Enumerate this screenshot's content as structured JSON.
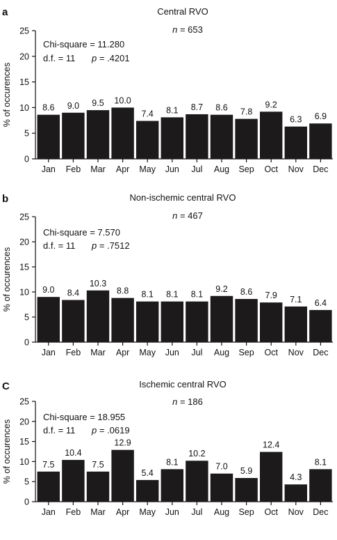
{
  "chart_data": [
    {
      "type": "bar",
      "panel": "a",
      "title": "Central RVO",
      "n_label": "n",
      "n_value": "= 653",
      "ylabel": "% of occurences",
      "xlabel": "",
      "ylim": [
        0,
        25
      ],
      "yticks": [
        "0",
        "5",
        "10",
        "15",
        "20",
        "25"
      ],
      "grid": false,
      "stats": {
        "chi_square": "Chi-square = 11.280",
        "df": "d.f. = 11",
        "p_label": "p",
        "p_value": "= .4201"
      },
      "categories": [
        "Jan",
        "Feb",
        "Mar",
        "Apr",
        "May",
        "Jun",
        "Jul",
        "Aug",
        "Sep",
        "Oct",
        "Nov",
        "Dec"
      ],
      "values": [
        8.6,
        9.0,
        9.5,
        10.0,
        7.4,
        8.1,
        8.7,
        8.6,
        7.8,
        9.2,
        6.3,
        6.9
      ],
      "value_labels": [
        "8.6",
        "9.0",
        "9.5",
        "10.0",
        "7.4",
        "8.1",
        "8.7",
        "8.6",
        "7.8",
        "9.2",
        "6.3",
        "6.9"
      ],
      "colors": {
        "bar": "#1c1a1a"
      }
    },
    {
      "type": "bar",
      "panel": "b",
      "title": "Non-ischemic central RVO",
      "n_label": "n",
      "n_value": "=  467",
      "ylabel": "% of occurences",
      "xlabel": "",
      "ylim": [
        0,
        25
      ],
      "yticks": [
        "0",
        "5",
        "10",
        "15",
        "20",
        "25"
      ],
      "grid": false,
      "stats": {
        "chi_square": "Chi-square = 7.570",
        "df": "d.f. = 11",
        "p_label": "p",
        "p_value": "= .7512"
      },
      "categories": [
        "Jan",
        "Feb",
        "Mar",
        "Apr",
        "May",
        "Jun",
        "Jul",
        "Aug",
        "Sep",
        "Oct",
        "Nov",
        "Dec"
      ],
      "values": [
        9.0,
        8.4,
        10.3,
        8.8,
        8.1,
        8.1,
        8.1,
        9.2,
        8.6,
        7.9,
        7.1,
        6.4
      ],
      "value_labels": [
        "9.0",
        "8.4",
        "10.3",
        "8.8",
        "8.1",
        "8.1",
        "8.1",
        "9.2",
        "8.6",
        "7.9",
        "7.1",
        "6.4"
      ],
      "colors": {
        "bar": "#1c1a1a"
      }
    },
    {
      "type": "bar",
      "panel": "C",
      "title": "Ischemic central RVO",
      "n_label": "n",
      "n_value": "=  186",
      "ylabel": "% of occurences",
      "xlabel": "",
      "ylim": [
        0,
        25
      ],
      "yticks": [
        "0",
        "5",
        "10",
        "15",
        "20",
        "25"
      ],
      "grid": false,
      "stats": {
        "chi_square": "Chi-square = 18.955",
        "df": "d.f. = 11",
        "p_label": "p",
        "p_value": "= .0619"
      },
      "categories": [
        "Jan",
        "Feb",
        "Mar",
        "Apr",
        "May",
        "Jun",
        "Jul",
        "Aug",
        "Sep",
        "Oct",
        "Nov",
        "Dec"
      ],
      "values": [
        7.5,
        10.4,
        7.5,
        12.9,
        5.4,
        8.1,
        10.2,
        7.0,
        5.9,
        12.4,
        4.3,
        8.1
      ],
      "value_labels": [
        "7.5",
        "10.4",
        "7.5",
        "12.9",
        "5.4",
        "8.1",
        "10.2",
        "7.0",
        "5.9",
        "12.4",
        "4.3",
        "8.1"
      ],
      "colors": {
        "bar": "#1c1a1a"
      }
    }
  ]
}
